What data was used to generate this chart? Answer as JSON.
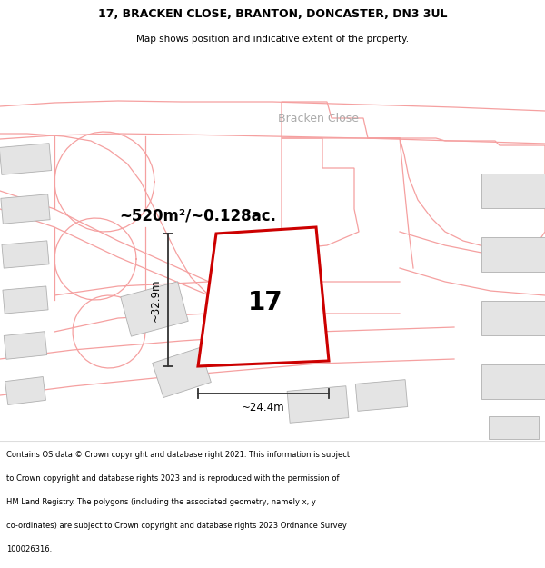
{
  "title_line1": "17, BRACKEN CLOSE, BRANTON, DONCASTER, DN3 3UL",
  "title_line2": "Map shows position and indicative extent of the property.",
  "area_text": "~520m²/~0.128ac.",
  "label_number": "17",
  "dim_width": "~24.4m",
  "dim_height": "~32.9m",
  "street_label": "Bracken Close",
  "footer_lines": [
    "Contains OS data © Crown copyright and database right 2021. This information is subject",
    "to Crown copyright and database rights 2023 and is reproduced with the permission of",
    "HM Land Registry. The polygons (including the associated geometry, namely x, y",
    "co-ordinates) are subject to Crown copyright and database rights 2023 Ordnance Survey",
    "100026316."
  ],
  "map_bg": "#ffffff",
  "property_outline": "#f5a0a0",
  "building_fill": "#e8e8e8",
  "building_outline": "#c0c0c0",
  "plot_outline_color": "#cc0000",
  "road_fill": "#f0f0f0",
  "text_color": "#000000",
  "dim_line_color": "#333333",
  "street_label_color": "#aaaaaa"
}
